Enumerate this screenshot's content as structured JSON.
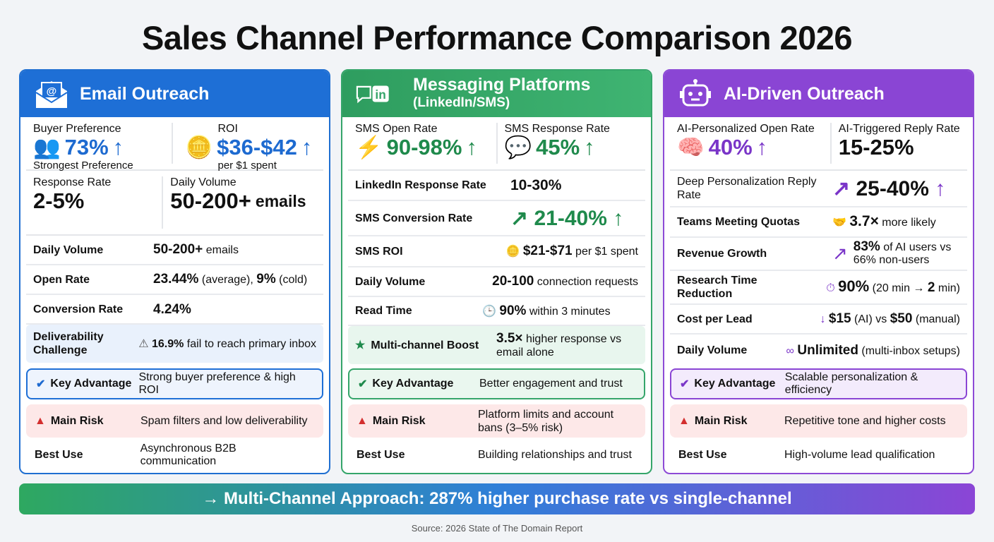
{
  "title": "Sales Channel Performance Comparison 2026",
  "colors": {
    "email": "#1e6fd6",
    "messaging": "#35a56a",
    "ai": "#8a45d4"
  },
  "email": {
    "header": "Email Outreach",
    "icon": "envelope-at-icon",
    "top": [
      {
        "label": "Buyer Preference",
        "value": "73%",
        "sub": "Strongest Preference"
      },
      {
        "label": "ROI",
        "value": "$36-$42",
        "sub": "per $1 spent"
      }
    ],
    "second": [
      {
        "label": "Response Rate",
        "value": "2-5%"
      },
      {
        "label": "Daily Volume",
        "value": "50-200+",
        "unit": "emails"
      }
    ],
    "rows": [
      {
        "label": "Daily Volume",
        "v1": "50-200+",
        "v2": " emails"
      },
      {
        "label": "Open Rate",
        "v1": "23.44%",
        "v2": " (average), ",
        "v3": "9%",
        "v4": " (cold)"
      },
      {
        "label": "Conversion Rate",
        "v1": "4.24%"
      },
      {
        "label": "Deliverability Challenge",
        "v1": "16.9%",
        "v2": " fail to reach primary inbox"
      }
    ],
    "advantage": {
      "label": "Key Advantage",
      "text": "Strong buyer preference & high ROI"
    },
    "risk": {
      "label": "Main Risk",
      "text": "Spam filters and low deliverability"
    },
    "best": {
      "label": "Best Use",
      "text": "Asynchronous B2B communication"
    }
  },
  "messaging": {
    "header": "Messaging Platforms",
    "subheader": "(LinkedIn/SMS)",
    "icon": "chat-linkedin-icon",
    "top": [
      {
        "label": "SMS Open Rate",
        "value": "90-98%"
      },
      {
        "label": "SMS Response Rate",
        "value": "45%"
      }
    ],
    "rows": [
      {
        "label": "LinkedIn Response Rate",
        "v1": "10-30%"
      },
      {
        "label": "SMS Conversion Rate",
        "v1": "21-40%"
      },
      {
        "label": "SMS ROI",
        "v1": "$21-$71",
        "v2": " per $1 spent"
      },
      {
        "label": "Daily Volume",
        "v1": "20-100",
        "v2": " connection requests"
      },
      {
        "label": "Read Time",
        "v1": "90%",
        "v2": " within 3 minutes"
      },
      {
        "label": "Multi-channel Boost",
        "v1": "3.5×",
        "v2": " higher response vs email alone"
      }
    ],
    "advantage": {
      "label": "Key Advantage",
      "text": "Better engagement and trust"
    },
    "risk": {
      "label": "Main Risk",
      "text": "Platform limits and account bans (3–5% risk)"
    },
    "best": {
      "label": "Best Use",
      "text": "Building relationships and trust"
    }
  },
  "ai": {
    "header": "AI-Driven Outreach",
    "icon": "robot-icon",
    "top": [
      {
        "label": "AI-Personalized Open Rate",
        "value": "40%"
      },
      {
        "label": "AI-Triggered Reply Rate",
        "value": "15-25%"
      }
    ],
    "rows": [
      {
        "label": "Deep Personalization Reply Rate",
        "v1": "25-40%"
      },
      {
        "label": "Teams Meeting Quotas",
        "v1": "3.7×",
        "v2": " more likely"
      },
      {
        "label": "Revenue Growth",
        "v1": "83%",
        "v2": " of AI users vs 66% non-users"
      },
      {
        "label": "Research Time Reduction",
        "v1": "90%",
        "v2": " (20 min → ",
        "v3": "2",
        "v4": " min)"
      },
      {
        "label": "Cost per Lead",
        "v1": "$15",
        "v2": " (AI) vs ",
        "v3": "$50",
        "v4": " (manual)"
      },
      {
        "label": "Daily Volume",
        "v1": "Unlimited",
        "v2": " (multi-inbox setups)"
      }
    ],
    "advantage": {
      "label": "Key Advantage",
      "text": "Scalable personalization & efficiency"
    },
    "risk": {
      "label": "Main Risk",
      "text": "Repetitive tone and higher costs"
    },
    "best": {
      "label": "Best Use",
      "text": "High-volume lead qualification"
    }
  },
  "banner": "→ Multi-Channel Approach: 287% higher purchase rate vs single-channel",
  "source": "Source: 2026 State of The Domain Report"
}
